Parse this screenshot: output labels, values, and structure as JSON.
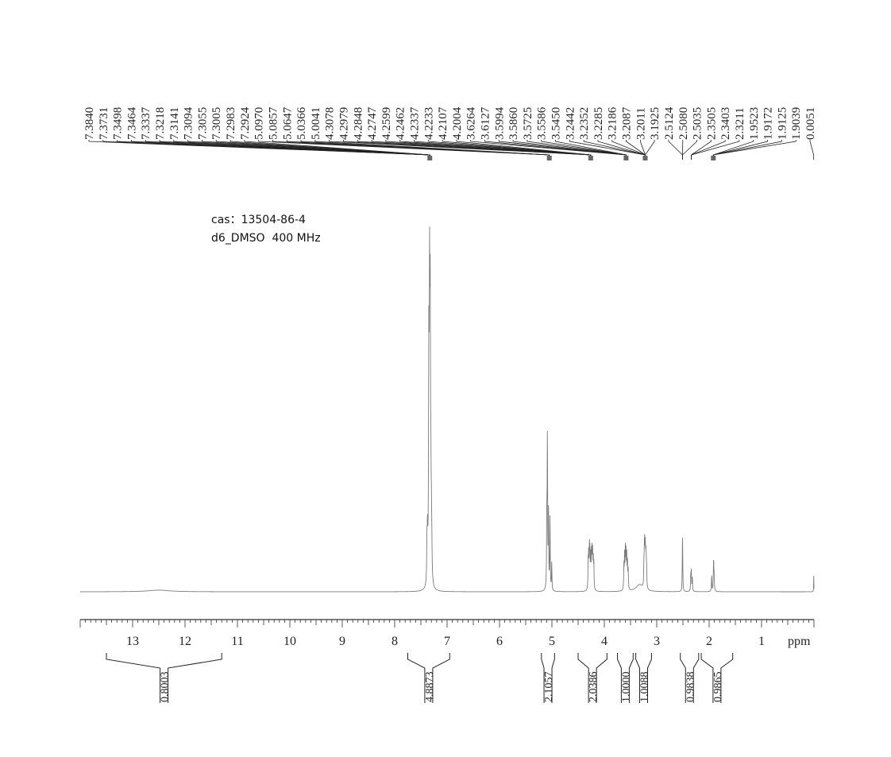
{
  "header": {
    "cas_line": "cas：13504-86-4",
    "solvent_line": "d6_DMSO  400 MHz"
  },
  "chart_data": {
    "type": "line",
    "title": "",
    "xlabel": "ppm",
    "ylabel": "",
    "x_axis": {
      "from": 14.0,
      "to": 0.0,
      "reversed": true,
      "major_ticks": [
        13,
        12,
        11,
        10,
        9,
        8,
        7,
        6,
        5,
        4,
        3,
        2,
        1
      ],
      "minor_tick_step": 0.1
    },
    "peak_labels": [
      "7.3840",
      "7.3731",
      "7.3498",
      "7.3464",
      "7.3337",
      "7.3218",
      "7.3141",
      "7.3094",
      "7.3055",
      "7.3005",
      "7.2983",
      "7.2924",
      "5.0970",
      "5.0857",
      "5.0647",
      "5.0366",
      "5.0041",
      "4.3078",
      "4.2979",
      "4.2848",
      "4.2747",
      "4.2599",
      "4.2462",
      "4.2337",
      "4.2233",
      "4.2107",
      "4.2004",
      "3.6264",
      "3.6127",
      "3.5994",
      "3.5860",
      "3.5725",
      "3.5586",
      "3.5450",
      "3.2442",
      "3.2352",
      "3.2285",
      "3.2186",
      "3.2087",
      "3.2011",
      "3.1925",
      "2.5124",
      "2.5080",
      "2.5035",
      "2.3505",
      "2.3403",
      "2.3211",
      "1.9523",
      "1.9172",
      "1.9125",
      "1.9039",
      "0.0051"
    ],
    "peak_bracket_groups": [
      {
        "count": 12,
        "anchor": 7.33
      },
      {
        "count": 5,
        "anchor": 5.05
      },
      {
        "count": 10,
        "anchor": 4.26
      },
      {
        "count": 7,
        "anchor": 3.585
      },
      {
        "count": 7,
        "anchor": 3.22
      },
      {
        "count": 3,
        "anchor": 2.508
      },
      {
        "count": 3,
        "anchor": 2.34
      },
      {
        "count": 4,
        "anchor": 1.92
      },
      {
        "count": 1,
        "anchor": 0.0051
      }
    ],
    "integrals": [
      {
        "from": 13.5,
        "to": 11.3,
        "value": "0.8003"
      },
      {
        "from": 7.75,
        "to": 6.95,
        "value": "4.8873"
      },
      {
        "from": 5.2,
        "to": 4.95,
        "value": "2.1057"
      },
      {
        "from": 4.5,
        "to": 3.95,
        "value": "2.0386"
      },
      {
        "from": 3.75,
        "to": 3.45,
        "value": "1.0000"
      },
      {
        "from": 3.4,
        "to": 3.1,
        "value": "1.0088"
      },
      {
        "from": 2.55,
        "to": 2.2,
        "value": "0.9838"
      },
      {
        "from": 2.15,
        "to": 1.55,
        "value": "0.9865"
      }
    ],
    "peaks": [
      {
        "ppm": 12.5,
        "h": 0.006,
        "w": 0.25
      },
      {
        "ppm": 7.384,
        "h": 0.15,
        "w": 0.006
      },
      {
        "ppm": 7.373,
        "h": 0.17,
        "w": 0.006
      },
      {
        "ppm": 7.35,
        "h": 0.44,
        "w": 0.006
      },
      {
        "ppm": 7.346,
        "h": 0.5,
        "w": 0.006
      },
      {
        "ppm": 7.334,
        "h": 0.98,
        "w": 0.006
      },
      {
        "ppm": 7.322,
        "h": 0.92,
        "w": 0.006
      },
      {
        "ppm": 7.31,
        "h": 0.3,
        "w": 0.006
      },
      {
        "ppm": 7.3,
        "h": 0.18,
        "w": 0.006
      },
      {
        "ppm": 7.292,
        "h": 0.1,
        "w": 0.006
      },
      {
        "ppm": 5.097,
        "h": 0.25,
        "w": 0.005
      },
      {
        "ppm": 5.086,
        "h": 0.55,
        "w": 0.005
      },
      {
        "ppm": 5.065,
        "h": 0.28,
        "w": 0.005
      },
      {
        "ppm": 5.037,
        "h": 0.27,
        "w": 0.005
      },
      {
        "ppm": 5.004,
        "h": 0.1,
        "w": 0.005
      },
      {
        "ppm": 4.308,
        "h": 0.1,
        "w": 0.005
      },
      {
        "ppm": 4.298,
        "h": 0.12,
        "w": 0.005
      },
      {
        "ppm": 4.285,
        "h": 0.14,
        "w": 0.005
      },
      {
        "ppm": 4.275,
        "h": 0.13,
        "w": 0.005
      },
      {
        "ppm": 4.26,
        "h": 0.12,
        "w": 0.005
      },
      {
        "ppm": 4.246,
        "h": 0.12,
        "w": 0.005
      },
      {
        "ppm": 4.234,
        "h": 0.13,
        "w": 0.005
      },
      {
        "ppm": 4.223,
        "h": 0.12,
        "w": 0.005
      },
      {
        "ppm": 4.211,
        "h": 0.1,
        "w": 0.005
      },
      {
        "ppm": 4.2,
        "h": 0.09,
        "w": 0.005
      },
      {
        "ppm": 3.626,
        "h": 0.09,
        "w": 0.005
      },
      {
        "ppm": 3.613,
        "h": 0.12,
        "w": 0.005
      },
      {
        "ppm": 3.599,
        "h": 0.14,
        "w": 0.005
      },
      {
        "ppm": 3.586,
        "h": 0.13,
        "w": 0.005
      },
      {
        "ppm": 3.573,
        "h": 0.12,
        "w": 0.005
      },
      {
        "ppm": 3.559,
        "h": 0.1,
        "w": 0.005
      },
      {
        "ppm": 3.545,
        "h": 0.07,
        "w": 0.005
      },
      {
        "ppm": 3.33,
        "h": 0.025,
        "w": 0.08
      },
      {
        "ppm": 3.244,
        "h": 0.08,
        "w": 0.005
      },
      {
        "ppm": 3.235,
        "h": 0.1,
        "w": 0.005
      },
      {
        "ppm": 3.229,
        "h": 0.12,
        "w": 0.005
      },
      {
        "ppm": 3.219,
        "h": 0.13,
        "w": 0.005
      },
      {
        "ppm": 3.209,
        "h": 0.1,
        "w": 0.005
      },
      {
        "ppm": 3.201,
        "h": 0.08,
        "w": 0.005
      },
      {
        "ppm": 3.193,
        "h": 0.06,
        "w": 0.005
      },
      {
        "ppm": 2.512,
        "h": 0.06,
        "w": 0.004
      },
      {
        "ppm": 2.508,
        "h": 0.14,
        "w": 0.004
      },
      {
        "ppm": 2.504,
        "h": 0.06,
        "w": 0.004
      },
      {
        "ppm": 2.35,
        "h": 0.06,
        "w": 0.005
      },
      {
        "ppm": 2.34,
        "h": 0.07,
        "w": 0.005
      },
      {
        "ppm": 2.321,
        "h": 0.05,
        "w": 0.005
      },
      {
        "ppm": 1.952,
        "h": 0.06,
        "w": 0.005
      },
      {
        "ppm": 1.917,
        "h": 0.07,
        "w": 0.005
      },
      {
        "ppm": 1.913,
        "h": 0.06,
        "w": 0.005
      },
      {
        "ppm": 1.904,
        "h": 0.05,
        "w": 0.005
      },
      {
        "ppm": 0.005,
        "h": 0.08,
        "w": 0.002
      }
    ],
    "colors": {
      "spectrum": "#7a7a7a",
      "axis": "#333333",
      "bracket": "#222222",
      "group_bar": "#666666"
    }
  }
}
